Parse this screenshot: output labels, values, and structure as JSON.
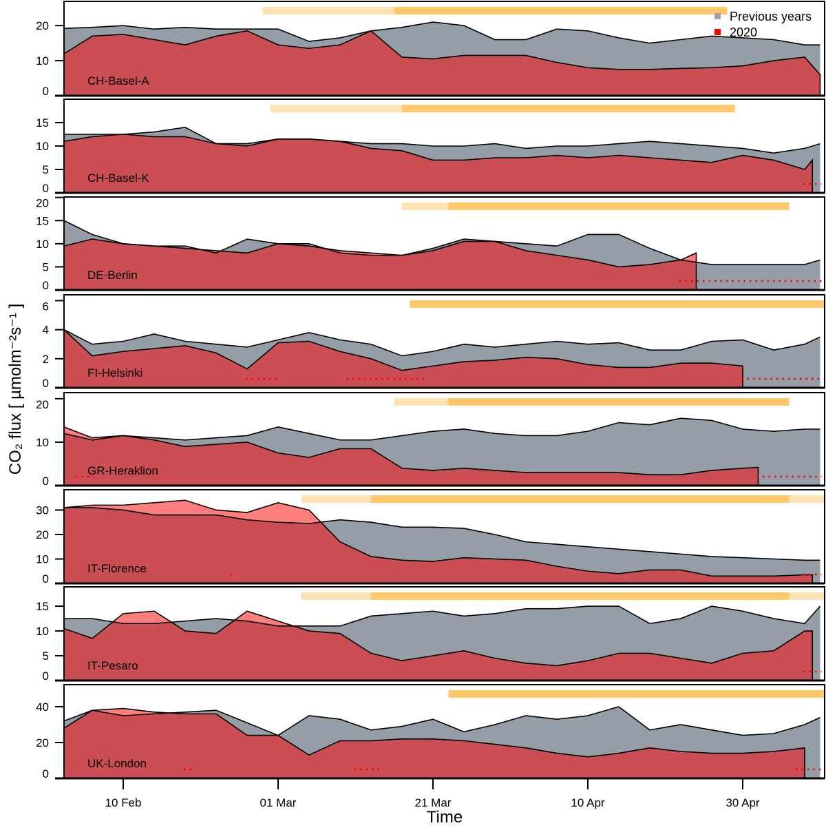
{
  "chart_data": {
    "type": "area",
    "xlabel": "Time",
    "ylabel": "CO₂ flux [ µmolm⁻²s⁻¹ ]",
    "x_ticks": [
      {
        "date": "2020-02-10",
        "label": "10 Feb"
      },
      {
        "date": "2020-03-01",
        "label": "01 Mar"
      },
      {
        "date": "2020-03-21",
        "label": "21 Mar"
      },
      {
        "date": "2020-04-10",
        "label": "10 Apr"
      },
      {
        "date": "2020-04-30",
        "label": "30 Apr"
      }
    ],
    "xlim": [
      "2020-02-02",
      "2020-05-10"
    ],
    "legend": {
      "placement": "top-right",
      "entries": [
        {
          "label": "Previous years",
          "color": "#9ea3a8"
        },
        {
          "label": "2020",
          "color": "#ff0000"
        }
      ]
    },
    "colors": {
      "previous_years_fill": "#959da6",
      "fill_2020": "rgba(255,0,0,0.5)",
      "partial_restriction_bar": "#fde3b4",
      "lockdown_bar": "#fec86b",
      "missing_data_dots": "#ff0000"
    },
    "dates": [
      "2020-02-02",
      "2020-02-06",
      "2020-02-10",
      "2020-02-14",
      "2020-02-18",
      "2020-02-22",
      "2020-02-26",
      "2020-03-01",
      "2020-03-05",
      "2020-03-09",
      "2020-03-13",
      "2020-03-17",
      "2020-03-21",
      "2020-03-25",
      "2020-03-29",
      "2020-04-02",
      "2020-04-06",
      "2020-04-10",
      "2020-04-14",
      "2020-04-18",
      "2020-04-22",
      "2020-04-26",
      "2020-04-30",
      "2020-05-04",
      "2020-05-08",
      "2020-05-10"
    ],
    "panels": [
      {
        "site": "CH-Basel-A",
        "ylim": [
          0,
          26.9
        ],
        "yticks": [
          0,
          10,
          20
        ],
        "previous_years": [
          19.2,
          19.5,
          20,
          19,
          19.5,
          19,
          19,
          19,
          15.5,
          16.5,
          18.5,
          19.5,
          21,
          20,
          16,
          16,
          19,
          18.5,
          16.5,
          15,
          16,
          17,
          16.5,
          16,
          14.5,
          14.5
        ],
        "y2020": [
          12,
          17,
          17.5,
          16,
          14.5,
          17,
          18.5,
          14.5,
          13.5,
          14.5,
          18.5,
          11,
          10.5,
          11.5,
          11.5,
          11.5,
          9.5,
          8,
          7.5,
          7.5,
          7.8,
          8,
          8.5,
          10,
          11,
          6
        ],
        "restrictions": [
          {
            "level": "partial",
            "start": "2020-02-28",
            "end": "2020-03-16"
          },
          {
            "level": "lockdown",
            "start": "2020-03-16",
            "end": "2020-04-28"
          }
        ],
        "missing_2020": [
          [
            "2020-05-10",
            "2020-05-10"
          ]
        ]
      },
      {
        "site": "CH-Basel-K",
        "ylim": [
          0,
          20
        ],
        "yticks": [
          0,
          5,
          10,
          15
        ],
        "previous_years": [
          12.5,
          12.5,
          12.5,
          13,
          14,
          10.5,
          10.5,
          11.5,
          11.5,
          11,
          10.5,
          10.5,
          10,
          10,
          10.5,
          9.5,
          10,
          10,
          10.5,
          11,
          10.5,
          10,
          9.5,
          8.5,
          9.5,
          10.5
        ],
        "y2020": [
          11,
          12,
          12.5,
          12,
          12,
          10.5,
          10,
          11.5,
          11.5,
          11,
          9.5,
          9,
          7,
          7,
          7.5,
          7.5,
          8,
          7.5,
          8,
          7.5,
          7,
          6.5,
          8,
          7,
          5
        ],
        "y2020_end": {
          "date": "2020-05-09",
          "value": 7
        },
        "restrictions": [
          {
            "level": "partial",
            "start": "2020-02-29",
            "end": "2020-03-17"
          },
          {
            "level": "lockdown",
            "start": "2020-03-17",
            "end": "2020-04-29"
          }
        ],
        "missing_2020": [
          [
            "2020-05-08",
            "2020-05-10"
          ]
        ]
      },
      {
        "site": "DE-Berlin",
        "ylim": [
          0,
          20.1
        ],
        "yticks": [
          0,
          5,
          10,
          15,
          20
        ],
        "previous_years": [
          15,
          12,
          10,
          9.5,
          9.5,
          8,
          11,
          10,
          10,
          8,
          7.5,
          7.5,
          9,
          11,
          10.5,
          10,
          9.5,
          12,
          12,
          9,
          6.5,
          5.5,
          5.5,
          5.5,
          5.5,
          6.5
        ],
        "y2020": [
          9.5,
          11,
          10,
          9.5,
          9,
          8.5,
          8,
          10,
          9.5,
          8.5,
          8,
          7.5,
          8.5,
          10.5,
          10.5,
          8.5,
          7.5,
          6.5,
          5,
          5.5,
          6.5
        ],
        "y2020_end": {
          "date": "2020-04-24",
          "value": 8
        },
        "restrictions": [
          {
            "level": "partial",
            "start": "2020-03-17",
            "end": "2020-03-23"
          },
          {
            "level": "lockdown",
            "start": "2020-03-23",
            "end": "2020-05-06"
          }
        ],
        "missing_2020": [
          [
            "2020-04-22",
            "2020-05-10"
          ]
        ]
      },
      {
        "site": "FI-Helsinki",
        "ylim": [
          0,
          6.4
        ],
        "yticks": [
          0,
          2,
          4,
          6
        ],
        "previous_years": [
          4,
          3,
          3.2,
          3.7,
          3.2,
          3,
          2.8,
          3.3,
          3.8,
          3.3,
          3,
          2.2,
          2.5,
          3,
          2.8,
          3,
          3.2,
          3,
          3.1,
          2.6,
          2.6,
          3.2,
          3.3,
          2.6,
          3,
          3.5
        ],
        "y2020": [
          4,
          2.2,
          2.5,
          2.7,
          2.9,
          2.4,
          1.3,
          3.1,
          3.2,
          2.5,
          2,
          1.2,
          1.5,
          1.8,
          1.9,
          2.1,
          2,
          1.6,
          1.4,
          1.4,
          1.7,
          1.7,
          1.5
        ],
        "restrictions": [
          {
            "level": "lockdown",
            "start": "2020-03-18",
            "end": "2020-05-10"
          }
        ],
        "missing_2020": [
          [
            "2020-02-26",
            "2020-03-01"
          ],
          [
            "2020-03-10",
            "2020-03-20"
          ],
          [
            "2020-04-30",
            "2020-05-10"
          ]
        ]
      },
      {
        "site": "GR-Heraklion",
        "ylim": [
          0,
          21.4
        ],
        "yticks": [
          0,
          10,
          20
        ],
        "previous_years": [
          12,
          10.5,
          11.5,
          11,
          10.5,
          11,
          11.5,
          13.5,
          12,
          10.5,
          10.5,
          11.5,
          12.5,
          13,
          12,
          11.5,
          11.5,
          12.5,
          14.5,
          14,
          15.5,
          15,
          13,
          12.5,
          13,
          13
        ],
        "y2020": [
          13.5,
          11,
          11.5,
          10.5,
          9,
          9.5,
          10,
          7.5,
          6.5,
          8.5,
          8.5,
          4,
          3.5,
          4,
          3.5,
          3,
          3,
          3,
          3,
          2.5,
          2.5,
          3.5,
          4
        ],
        "y2020_end": {
          "date": "2020-05-02",
          "value": 4.2
        },
        "restrictions": [
          {
            "level": "partial",
            "start": "2020-03-16",
            "end": "2020-03-23"
          },
          {
            "level": "lockdown",
            "start": "2020-03-23",
            "end": "2020-05-06"
          }
        ],
        "missing_2020": [
          [
            "2020-02-04",
            "2020-02-06"
          ],
          [
            "2020-05-02",
            "2020-05-10"
          ]
        ]
      },
      {
        "site": "IT-Florence",
        "ylim": [
          0,
          38.3
        ],
        "yticks": [
          0,
          10,
          20,
          30
        ],
        "previous_years": [
          31,
          31,
          30,
          28,
          28,
          28,
          26,
          25,
          24.5,
          26,
          25,
          23,
          23,
          22.5,
          20,
          17,
          16,
          15,
          14,
          13,
          12,
          11,
          10.5,
          10,
          9.5,
          9.5
        ],
        "y2020": [
          31,
          32,
          32,
          33,
          34,
          30,
          29,
          33,
          30,
          17,
          11,
          9.5,
          9,
          10.5,
          10,
          9.5,
          7,
          5,
          4,
          5.5,
          5.5,
          3,
          3,
          3,
          3.5
        ],
        "y2020_end": {
          "date": "2020-05-09",
          "value": 3.5
        },
        "restrictions": [
          {
            "level": "partial",
            "start": "2020-03-04",
            "end": "2020-03-13"
          },
          {
            "level": "lockdown",
            "start": "2020-03-13",
            "end": "2020-05-06"
          },
          {
            "level": "partial",
            "start": "2020-05-06",
            "end": "2020-05-10"
          }
        ],
        "missing_2020": [
          [
            "2020-02-24",
            "2020-02-24"
          ],
          [
            "2020-05-08",
            "2020-05-10"
          ]
        ]
      },
      {
        "site": "IT-Pesaro",
        "ylim": [
          0,
          18.9
        ],
        "yticks": [
          0,
          5,
          10,
          15
        ],
        "previous_years": [
          12.5,
          12.5,
          11.5,
          11.5,
          12,
          12.5,
          12,
          11,
          11,
          11,
          13,
          13.5,
          14,
          13,
          13.5,
          14.5,
          14.5,
          15,
          15,
          11.5,
          12.5,
          15,
          14,
          12.5,
          11.5,
          15
        ],
        "y2020": [
          10.5,
          8.5,
          13.5,
          14,
          10,
          9.5,
          14,
          12,
          10,
          9.5,
          5.5,
          4,
          5,
          6,
          4.5,
          3.5,
          3,
          4,
          5.5,
          5.5,
          4.5,
          3.5,
          5.5,
          6,
          10
        ],
        "y2020_end": {
          "date": "2020-05-09",
          "value": 10
        },
        "restrictions": [
          {
            "level": "partial",
            "start": "2020-03-04",
            "end": "2020-03-13"
          },
          {
            "level": "lockdown",
            "start": "2020-03-13",
            "end": "2020-05-06"
          },
          {
            "level": "partial",
            "start": "2020-05-06",
            "end": "2020-05-10"
          }
        ],
        "missing_2020": [
          [
            "2020-05-08",
            "2020-05-10"
          ]
        ]
      },
      {
        "site": "UK-London",
        "ylim": [
          0,
          52.3
        ],
        "yticks": [
          0,
          20,
          40
        ],
        "previous_years": [
          32,
          38,
          35,
          36,
          37,
          38,
          31,
          24,
          35,
          33,
          27,
          29,
          33,
          26,
          30,
          35,
          33,
          35,
          40,
          27,
          30,
          27,
          24,
          25,
          30,
          34
        ],
        "y2020": [
          28,
          38,
          39,
          37,
          36,
          36,
          24,
          24,
          13,
          21,
          21,
          22,
          22,
          21,
          19,
          17,
          14,
          12,
          14,
          17,
          15,
          14,
          14,
          15,
          17
        ],
        "restrictions": [
          {
            "level": "lockdown",
            "start": "2020-03-23",
            "end": "2020-05-10"
          }
        ],
        "missing_2020": [
          [
            "2020-02-18",
            "2020-02-19"
          ],
          [
            "2020-03-11",
            "2020-03-14"
          ],
          [
            "2020-05-07",
            "2020-05-10"
          ]
        ]
      }
    ]
  }
}
